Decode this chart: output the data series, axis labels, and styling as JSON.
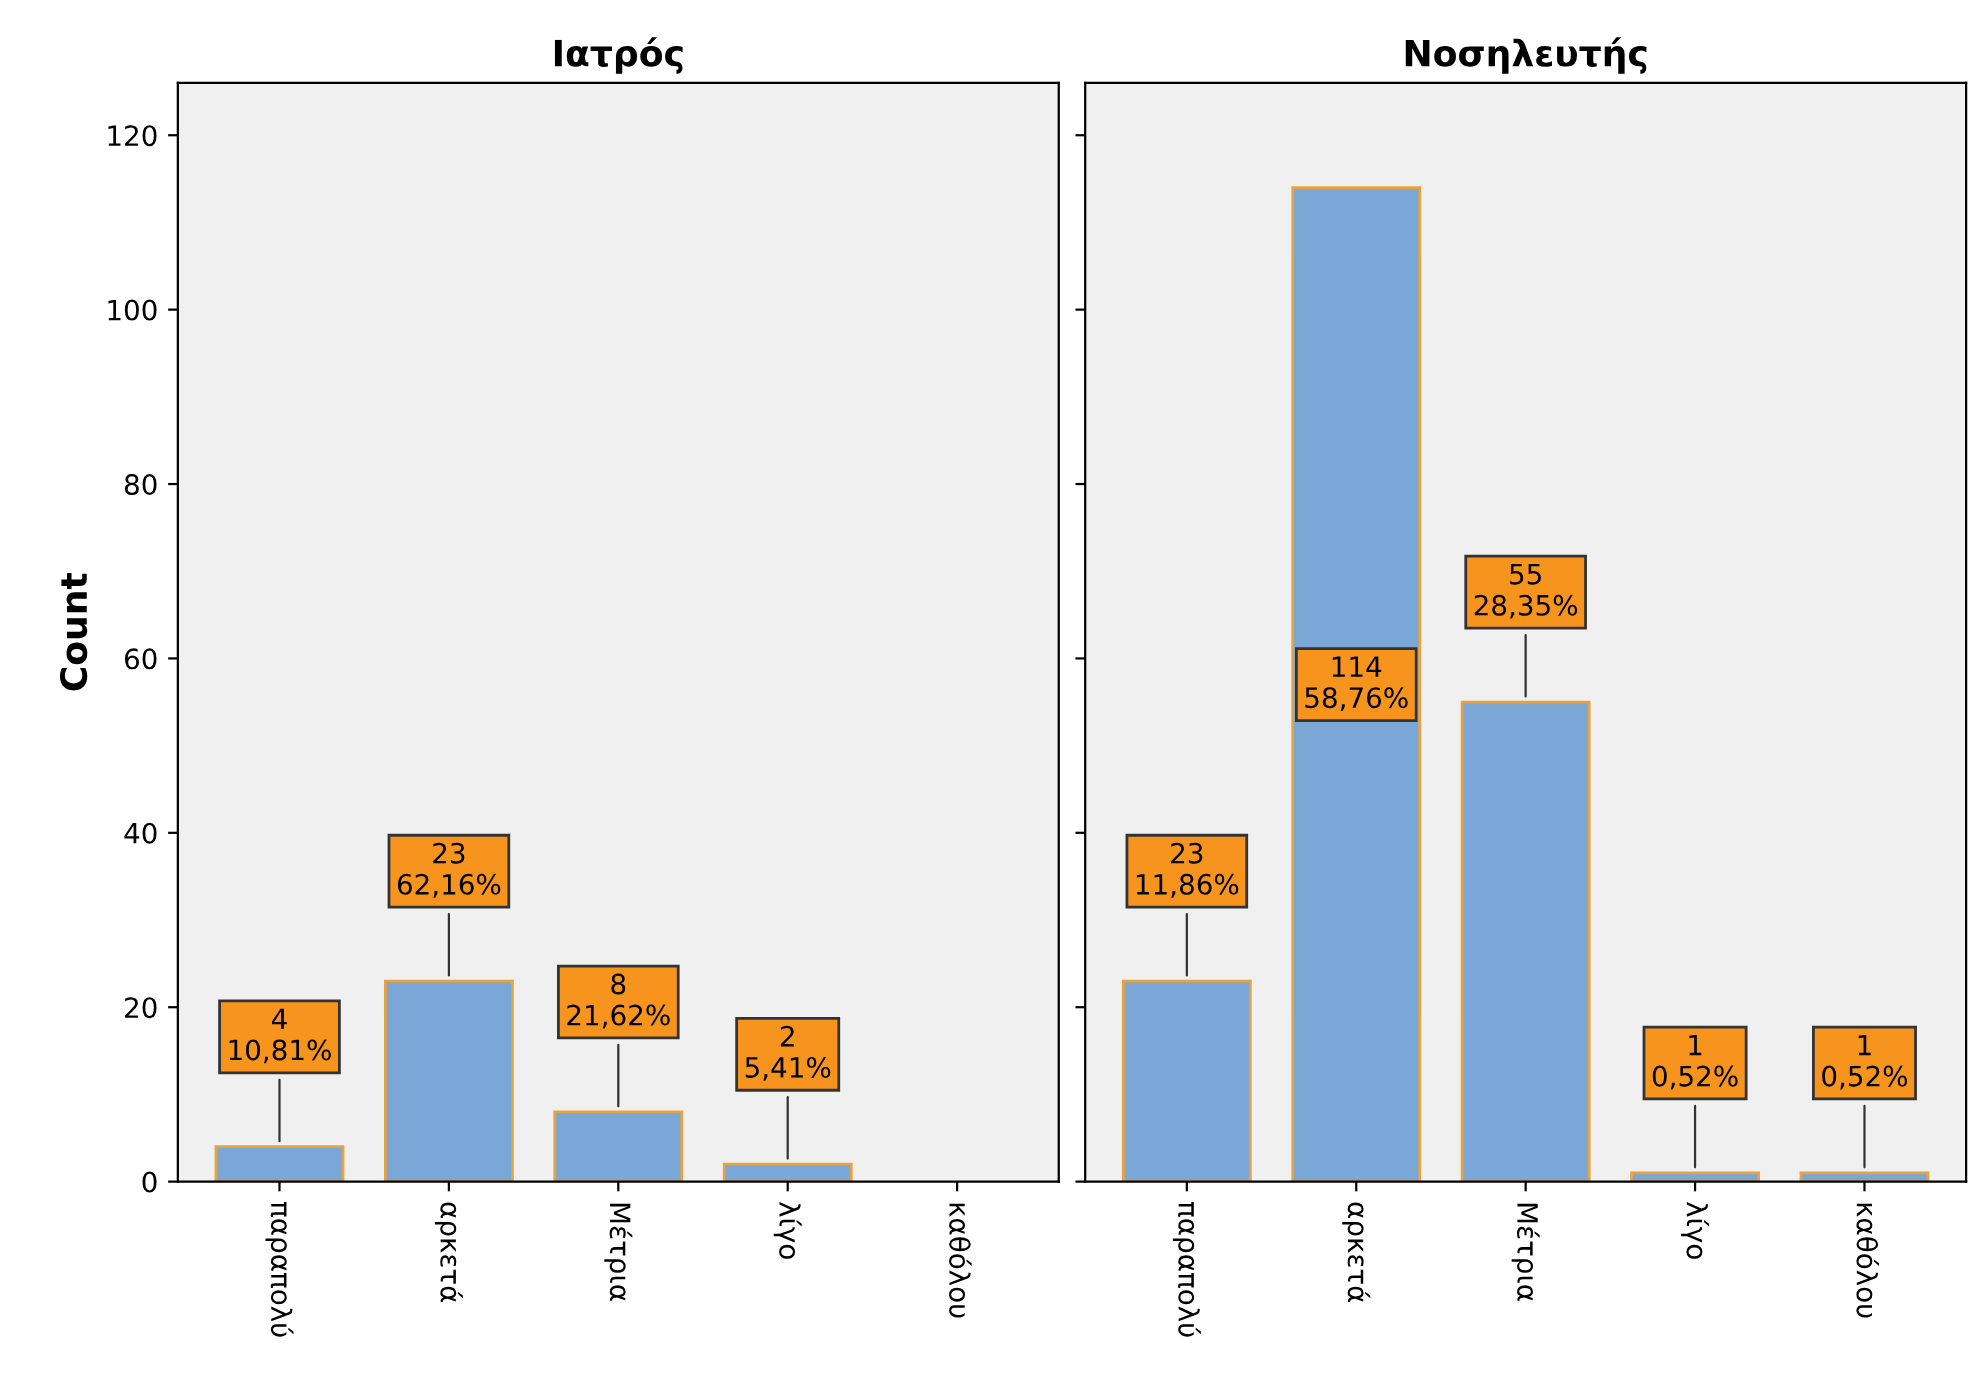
{
  "chart_data": [
    {
      "type": "bar",
      "title": "Ιατρός",
      "ylabel": "Count",
      "categories": [
        "παραπολύ",
        "αρκετά",
        "Μέτρια",
        "λίγο",
        "καθόλου"
      ],
      "values": [
        4,
        23,
        8,
        2,
        0
      ],
      "color": "#7ba7d7",
      "value_labels": [
        "4\n10,81%",
        "23\n62,16%",
        "8\n21,62%",
        "2\n5,41%",
        null
      ],
      "ylim": [
        0,
        126
      ],
      "yticks": [
        0,
        20,
        40,
        60,
        80,
        100,
        120
      ],
      "grid": false,
      "legend": false
    },
    {
      "type": "bar",
      "title": "Νοσηλευτής",
      "categories": [
        "παραπολύ",
        "αρκετά",
        "Μέτρια",
        "λίγο",
        "καθόλου"
      ],
      "values": [
        23,
        114,
        55,
        1,
        1
      ],
      "color": "#7ba7d7",
      "value_labels": [
        "23\n11,86%",
        "114\n58,76%",
        "55\n28,35%",
        "1\n0,52%",
        "1\n0,52%"
      ],
      "ylim": [
        0,
        126
      ],
      "yticks": [
        0,
        20,
        40,
        60,
        80,
        100,
        120
      ],
      "tick_labels": "x",
      "grid": false,
      "legend": false
    }
  ]
}
